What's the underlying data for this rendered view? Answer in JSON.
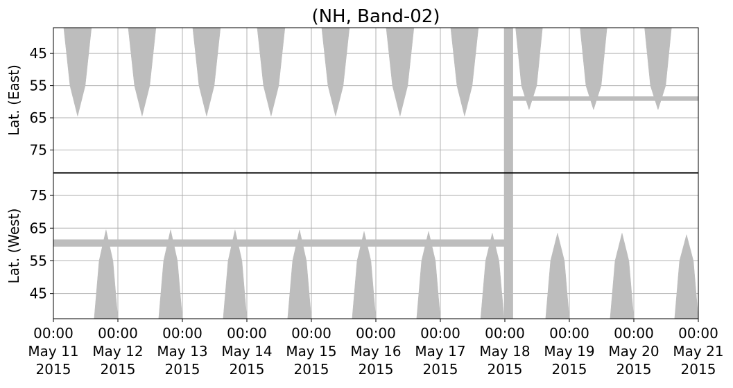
{
  "chart_data": {
    "type": "coverage",
    "title": "(NH, Band-02)",
    "xlim": [
      "2015-05-11 00:00",
      "2015-05-21 00:00"
    ],
    "xticks": [
      {
        "value": "2015-05-11 00:00",
        "label": "00:00\nMay 11\n2015"
      },
      {
        "value": "2015-05-12 00:00",
        "label": "00:00\nMay 12\n2015"
      },
      {
        "value": "2015-05-13 00:00",
        "label": "00:00\nMay 13\n2015"
      },
      {
        "value": "2015-05-14 00:00",
        "label": "00:00\nMay 14\n2015"
      },
      {
        "value": "2015-05-15 00:00",
        "label": "00:00\nMay 15\n2015"
      },
      {
        "value": "2015-05-16 00:00",
        "label": "00:00\nMay 16\n2015"
      },
      {
        "value": "2015-05-17 00:00",
        "label": "00:00\nMay 17\n2015"
      },
      {
        "value": "2015-05-18 00:00",
        "label": "00:00\nMay 18\n2015"
      },
      {
        "value": "2015-05-19 00:00",
        "label": "00:00\nMay 19\n2015"
      },
      {
        "value": "2015-05-20 00:00",
        "label": "00:00\nMay 20\n2015"
      },
      {
        "value": "2015-05-21 00:00",
        "label": "00:00\nMay 21\n2015"
      }
    ],
    "grid": true,
    "color": "#bdbdbd",
    "panels": [
      {
        "ylabel": "Lat. (East)",
        "ylim": [
          82,
          37
        ],
        "yticks": [
          45,
          55,
          65,
          75
        ],
        "areas": [
          {
            "x": [
              "2015-05-11 03:50",
              "2015-05-11 06:10",
              "2015-05-11 09:00",
              "2015-05-11 11:50",
              "2015-05-11 14:10"
            ],
            "values": [
              37,
              55,
              64.5,
              55,
              37
            ]
          },
          {
            "x": [
              "2015-05-12 03:50",
              "2015-05-12 06:10",
              "2015-05-12 09:00",
              "2015-05-12 11:50",
              "2015-05-12 14:10"
            ],
            "values": [
              37,
              55,
              64.5,
              55,
              37
            ]
          },
          {
            "x": [
              "2015-05-13 03:50",
              "2015-05-13 06:10",
              "2015-05-13 09:00",
              "2015-05-13 11:50",
              "2015-05-13 14:10"
            ],
            "values": [
              37,
              55,
              64.5,
              55,
              37
            ]
          },
          {
            "x": [
              "2015-05-14 03:50",
              "2015-05-14 06:10",
              "2015-05-14 09:00",
              "2015-05-14 11:50",
              "2015-05-14 14:10"
            ],
            "values": [
              37,
              55,
              64.5,
              55,
              37
            ]
          },
          {
            "x": [
              "2015-05-15 03:50",
              "2015-05-15 06:10",
              "2015-05-15 09:00",
              "2015-05-15 11:50",
              "2015-05-15 14:10"
            ],
            "values": [
              37,
              55,
              64.5,
              55,
              37
            ]
          },
          {
            "x": [
              "2015-05-16 03:50",
              "2015-05-16 06:10",
              "2015-05-16 09:00",
              "2015-05-16 11:50",
              "2015-05-16 14:10"
            ],
            "values": [
              37,
              55,
              64.5,
              55,
              37
            ]
          },
          {
            "x": [
              "2015-05-17 03:50",
              "2015-05-17 06:10",
              "2015-05-17 09:00",
              "2015-05-17 11:50",
              "2015-05-17 14:10"
            ],
            "values": [
              37,
              55,
              64.5,
              55,
              37
            ]
          },
          {
            "x": [
              "2015-05-18 04:00",
              "2015-05-18 06:10",
              "2015-05-18 09:00",
              "2015-05-18 11:50",
              "2015-05-18 14:00"
            ],
            "values": [
              37,
              55,
              62.5,
              55,
              37
            ]
          },
          {
            "x": [
              "2015-05-19 04:00",
              "2015-05-19 06:10",
              "2015-05-19 09:00",
              "2015-05-19 11:50",
              "2015-05-19 14:00"
            ],
            "values": [
              37,
              55,
              62.5,
              55,
              37
            ]
          },
          {
            "x": [
              "2015-05-20 04:00",
              "2015-05-20 06:10",
              "2015-05-20 09:00",
              "2015-05-20 11:50",
              "2015-05-20 14:00"
            ],
            "values": [
              37,
              55,
              62.5,
              55,
              37
            ]
          },
          {
            "x": [
              "2015-05-17 23:45",
              "2015-05-18 03:00",
              "2015-05-18 03:00",
              "2015-05-17 23:45"
            ],
            "values": [
              37,
              37,
              82,
              82
            ]
          },
          {
            "x": [
              "2015-05-18 03:00",
              "2015-05-21 00:00",
              "2015-05-21 00:00",
              "2015-05-18 03:00"
            ],
            "values": [
              58.4,
              58.4,
              59.7,
              59.7
            ]
          }
        ]
      },
      {
        "ylabel": "Lat. (West)",
        "ylim": [
          37.3,
          81.8
        ],
        "yticks": [
          45,
          55,
          65,
          75
        ],
        "areas": [
          {
            "x": [
              "2015-05-11 15:10",
              "2015-05-11 17:00",
              "2015-05-11 19:36",
              "2015-05-11 22:10",
              "2015-05-12 00:00"
            ],
            "values": [
              37.3,
              55,
              64.5,
              55,
              37.3
            ]
          },
          {
            "x": [
              "2015-05-12 15:10",
              "2015-05-12 17:00",
              "2015-05-12 19:36",
              "2015-05-12 22:10",
              "2015-05-13 00:00"
            ],
            "values": [
              37.3,
              55,
              64.5,
              55,
              37.3
            ]
          },
          {
            "x": [
              "2015-05-13 15:10",
              "2015-05-13 17:00",
              "2015-05-13 19:36",
              "2015-05-13 22:10",
              "2015-05-14 00:00"
            ],
            "values": [
              37.3,
              55,
              64.5,
              55,
              37.3
            ]
          },
          {
            "x": [
              "2015-05-14 15:10",
              "2015-05-14 17:00",
              "2015-05-14 19:36",
              "2015-05-14 22:10",
              "2015-05-15 00:00"
            ],
            "values": [
              37.3,
              55,
              64.5,
              55,
              37.3
            ]
          },
          {
            "x": [
              "2015-05-15 15:10",
              "2015-05-15 17:00",
              "2015-05-15 19:36",
              "2015-05-15 22:10",
              "2015-05-16 00:00"
            ],
            "values": [
              37.3,
              55,
              64,
              55,
              37.3
            ]
          },
          {
            "x": [
              "2015-05-16 15:10",
              "2015-05-16 17:00",
              "2015-05-16 19:36",
              "2015-05-16 22:10",
              "2015-05-17 00:00"
            ],
            "values": [
              37.3,
              55,
              64,
              55,
              37.3
            ]
          },
          {
            "x": [
              "2015-05-17 15:00",
              "2015-05-17 16:50",
              "2015-05-17 19:20",
              "2015-05-17 21:50",
              "2015-05-17 23:45"
            ],
            "values": [
              37.3,
              55,
              63.5,
              55,
              37.3
            ]
          },
          {
            "x": [
              "2015-05-18 15:10",
              "2015-05-18 17:00",
              "2015-05-18 19:36",
              "2015-05-18 22:10",
              "2015-05-19 00:00"
            ],
            "values": [
              37.3,
              55,
              63.5,
              55,
              37.3
            ]
          },
          {
            "x": [
              "2015-05-19 15:10",
              "2015-05-19 17:00",
              "2015-05-19 19:36",
              "2015-05-19 22:10",
              "2015-05-20 00:00"
            ],
            "values": [
              37.3,
              55,
              63.5,
              55,
              37.3
            ]
          },
          {
            "x": [
              "2015-05-20 15:10",
              "2015-05-20 17:00",
              "2015-05-20 19:36",
              "2015-05-20 22:10",
              "2015-05-21 00:00"
            ],
            "values": [
              37.3,
              55,
              63,
              55,
              37.3
            ]
          },
          {
            "x": [
              "2015-05-11 00:00",
              "2015-05-17 23:45",
              "2015-05-17 23:45",
              "2015-05-11 00:00"
            ],
            "values": [
              59.4,
              59.4,
              61.5,
              61.5
            ]
          },
          {
            "x": [
              "2015-05-17 23:45",
              "2015-05-18 03:00",
              "2015-05-18 03:00",
              "2015-05-17 23:45"
            ],
            "values": [
              37.3,
              37.3,
              81.8,
              81.8
            ]
          }
        ]
      }
    ]
  }
}
